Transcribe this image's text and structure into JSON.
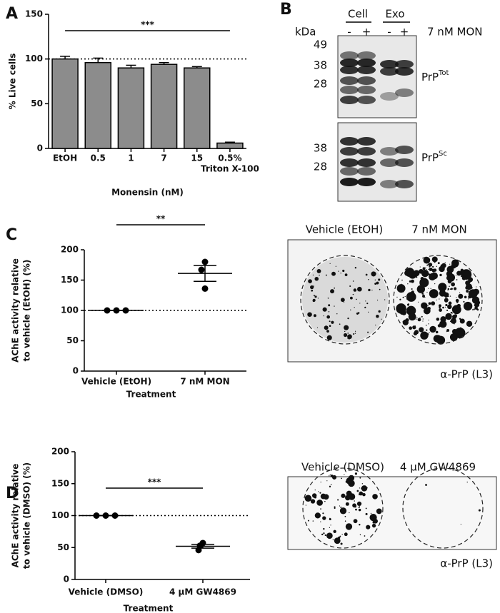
{
  "panel_labels": [
    "A",
    "B",
    "C",
    "D"
  ],
  "chart_data": [
    {
      "type": "bar",
      "ylabel": [
        "% Live cells"
      ],
      "xlabel": "Monensin (nM)",
      "categories": [
        "EtOH",
        "0.5",
        "1",
        "7",
        "15",
        "0.5%"
      ],
      "category_note": "Triton X-100",
      "values": [
        100,
        96,
        90,
        94,
        90,
        6
      ],
      "errors": [
        3,
        5,
        3,
        2,
        1.5,
        1
      ],
      "color": "#8c8c8c",
      "ylim": [
        0,
        150
      ],
      "yticks": [
        0,
        50,
        100,
        150
      ],
      "reference_line": 100,
      "significance": "***"
    },
    {
      "type": "scatter",
      "ylabel": [
        "AChE activity relative",
        "to vehicle (EtOH) (%)"
      ],
      "xlabel": "Treatment",
      "categories": [
        "Vehicle (EtOH)",
        "7 nM MON"
      ],
      "points": [
        [
          100,
          100,
          100
        ],
        [
          180,
          167,
          136
        ]
      ],
      "means": [
        100,
        161
      ],
      "sem": [
        0,
        13
      ],
      "ylim": [
        0,
        200
      ],
      "yticks": [
        0,
        50,
        100,
        150,
        200
      ],
      "reference_line": 100,
      "significance": "**"
    },
    {
      "type": "scatter",
      "ylabel": [
        "AChE activity relative",
        "to vehicle (DMSO) (%)"
      ],
      "xlabel": "Treatment",
      "categories": [
        "Vehicle (DMSO)",
        "4 µM GW4869"
      ],
      "points": [
        [
          100,
          100,
          100
        ],
        [
          57,
          46,
          53
        ]
      ],
      "means": [
        100,
        52
      ],
      "sem": [
        0,
        3
      ],
      "ylim": [
        0,
        200
      ],
      "yticks": [
        0,
        50,
        100,
        150,
        200
      ],
      "reference_line": 100,
      "significance": "***"
    }
  ],
  "blot": {
    "kda": "kDa",
    "groups": [
      "Cell",
      "Exo"
    ],
    "lanes": [
      "-",
      "+",
      "-",
      "+"
    ],
    "treatment": "7 nM MON",
    "top_markers": [
      "49",
      "38",
      "28"
    ],
    "bottom_markers": [
      "38",
      "28"
    ],
    "top_label": {
      "text": "PrP",
      "sup": "Tot"
    },
    "bottom_label": {
      "text": "PrP",
      "sup": "Sc"
    }
  },
  "images": [
    {
      "labels": [
        "Vehicle (EtOH)",
        "7 nM MON"
      ],
      "antibody": "α-PrP (L3)"
    },
    {
      "labels": [
        "Vehicle (DMSO)",
        "4 µM GW4869"
      ],
      "antibody": "α-PrP (L3)"
    }
  ]
}
